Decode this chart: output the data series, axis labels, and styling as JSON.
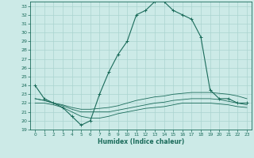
{
  "title": "",
  "xlabel": "Humidex (Indice chaleur)",
  "bg_color": "#cceae7",
  "grid_color": "#aad4d0",
  "line_color": "#1a6b5a",
  "xlim": [
    -0.5,
    23.5
  ],
  "ylim": [
    19,
    33.5
  ],
  "xticks": [
    0,
    1,
    2,
    3,
    4,
    5,
    6,
    7,
    8,
    9,
    10,
    11,
    12,
    13,
    14,
    15,
    16,
    17,
    18,
    19,
    20,
    21,
    22,
    23
  ],
  "yticks": [
    19,
    20,
    21,
    22,
    23,
    24,
    25,
    26,
    27,
    28,
    29,
    30,
    31,
    32,
    33
  ],
  "series0": [
    24.0,
    22.5,
    22.0,
    21.5,
    20.5,
    19.5,
    20.0,
    23.0,
    25.5,
    27.5,
    29.0,
    32.0,
    32.5,
    33.5,
    33.5,
    32.5,
    32.0,
    31.5,
    29.5,
    23.5,
    22.5,
    22.5,
    22.0,
    22.0
  ],
  "series1": [
    22.5,
    22.3,
    22.0,
    21.8,
    21.5,
    21.3,
    21.3,
    21.4,
    21.5,
    21.7,
    22.0,
    22.3,
    22.5,
    22.7,
    22.8,
    23.0,
    23.1,
    23.2,
    23.2,
    23.2,
    23.1,
    23.0,
    22.8,
    22.5
  ],
  "series2": [
    22.5,
    22.3,
    22.0,
    21.7,
    21.3,
    21.0,
    21.0,
    21.0,
    21.0,
    21.2,
    21.4,
    21.6,
    21.8,
    22.0,
    22.1,
    22.3,
    22.4,
    22.5,
    22.5,
    22.5,
    22.4,
    22.2,
    22.0,
    21.8
  ],
  "series3": [
    22.0,
    22.0,
    21.8,
    21.5,
    21.0,
    20.5,
    20.3,
    20.3,
    20.5,
    20.8,
    21.0,
    21.2,
    21.4,
    21.5,
    21.6,
    21.8,
    22.0,
    22.0,
    22.0,
    22.0,
    21.9,
    21.8,
    21.6,
    21.5
  ]
}
